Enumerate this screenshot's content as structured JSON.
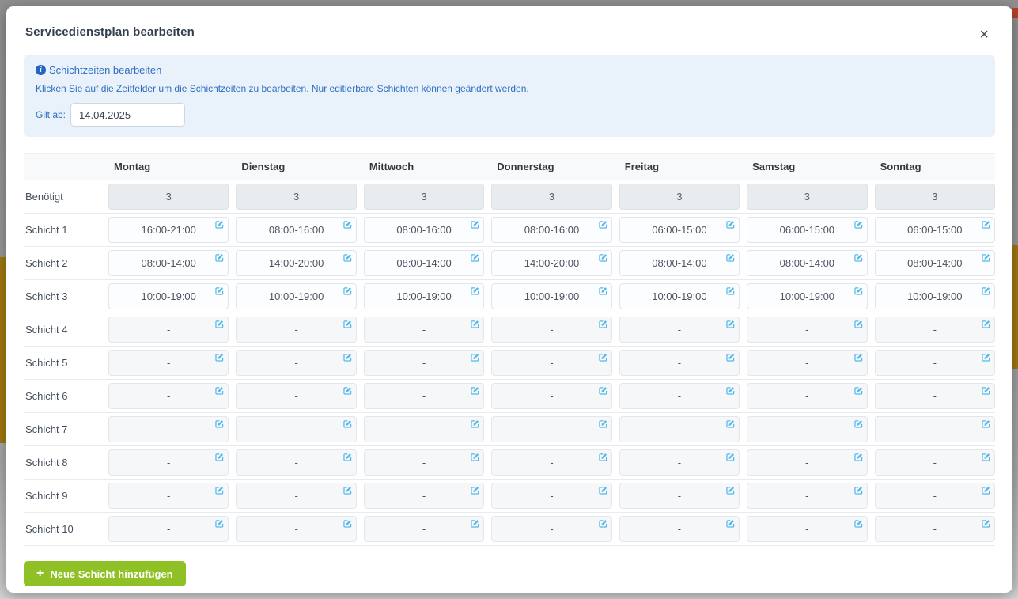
{
  "modal": {
    "title": "Servicedienstplan bearbeiten",
    "close_glyph": "×"
  },
  "info_box": {
    "icon_glyph": "i",
    "heading": "Schichtzeiten bearbeiten",
    "description": "Klicken Sie auf die Zeitfelder um die Schichtzeiten zu bearbeiten. Nur editierbare Schichten können geändert werden.",
    "valid_from_label": "Gilt ab:",
    "valid_from_value": "14.04.2025"
  },
  "table": {
    "day_headers": [
      "Montag",
      "Dienstag",
      "Mittwoch",
      "Donnerstag",
      "Freitag",
      "Samstag",
      "Sonntag"
    ],
    "required_row": {
      "label": "Benötigt",
      "values": [
        "3",
        "3",
        "3",
        "3",
        "3",
        "3",
        "3"
      ]
    },
    "shift_rows": [
      {
        "label": "Schicht 1",
        "times": [
          "16:00-21:00",
          "08:00-16:00",
          "08:00-16:00",
          "08:00-16:00",
          "06:00-15:00",
          "06:00-15:00",
          "06:00-15:00"
        ]
      },
      {
        "label": "Schicht 2",
        "times": [
          "08:00-14:00",
          "14:00-20:00",
          "08:00-14:00",
          "14:00-20:00",
          "08:00-14:00",
          "08:00-14:00",
          "08:00-14:00"
        ]
      },
      {
        "label": "Schicht 3",
        "times": [
          "10:00-19:00",
          "10:00-19:00",
          "10:00-19:00",
          "10:00-19:00",
          "10:00-19:00",
          "10:00-19:00",
          "10:00-19:00"
        ]
      },
      {
        "label": "Schicht 4",
        "times": [
          "-",
          "-",
          "-",
          "-",
          "-",
          "-",
          "-"
        ]
      },
      {
        "label": "Schicht 5",
        "times": [
          "-",
          "-",
          "-",
          "-",
          "-",
          "-",
          "-"
        ]
      },
      {
        "label": "Schicht 6",
        "times": [
          "-",
          "-",
          "-",
          "-",
          "-",
          "-",
          "-"
        ]
      },
      {
        "label": "Schicht 7",
        "times": [
          "-",
          "-",
          "-",
          "-",
          "-",
          "-",
          "-"
        ]
      },
      {
        "label": "Schicht 8",
        "times": [
          "-",
          "-",
          "-",
          "-",
          "-",
          "-",
          "-"
        ]
      },
      {
        "label": "Schicht 9",
        "times": [
          "-",
          "-",
          "-",
          "-",
          "-",
          "-",
          "-"
        ]
      },
      {
        "label": "Schicht 10",
        "times": [
          "-",
          "-",
          "-",
          "-",
          "-",
          "-",
          "-"
        ]
      }
    ]
  },
  "actions": {
    "add_shift_icon": "+",
    "add_shift_label": "Neue Schicht hinzufügen"
  },
  "colors": {
    "info_text": "#2e6fc0",
    "info_bg": "#e9f1fb",
    "edit_icon": "#55b9e8",
    "add_button_bg": "#8fc026",
    "backdrop_gold": "#a2790f"
  }
}
